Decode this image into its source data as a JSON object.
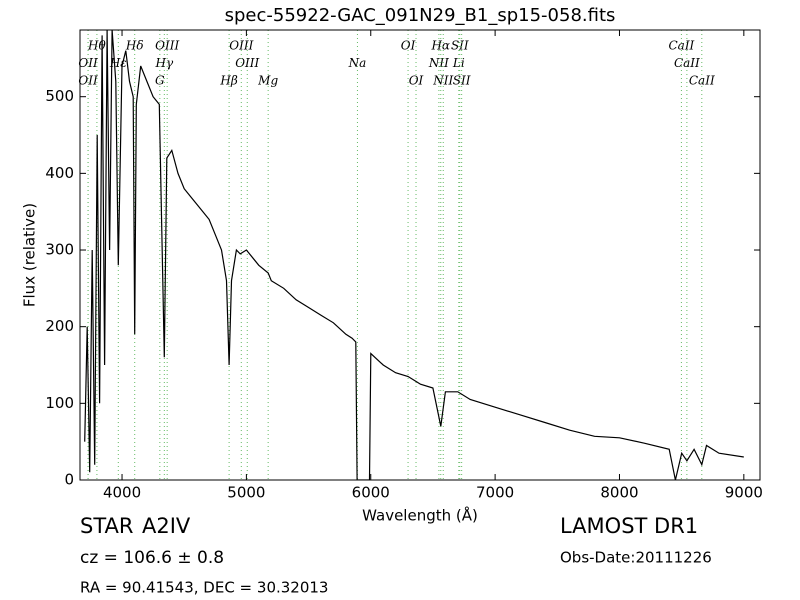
{
  "chart_data": {
    "type": "line",
    "title": "spec-55922-GAC_091N29_B1_sp15-058.fits",
    "x_label": "Wavelength (Å)",
    "y_label": "Flux (relative)",
    "color": "#000000",
    "annotation_color": "#66bb66",
    "xlim": [
      3662,
      9130
    ],
    "ylim": [
      0,
      587
    ],
    "xticks": [
      4000,
      5000,
      6000,
      7000,
      8000,
      9000
    ],
    "yticks": [
      0,
      100,
      200,
      300,
      400,
      500
    ],
    "x": [
      3700,
      3720,
      3740,
      3760,
      3780,
      3800,
      3820,
      3840,
      3860,
      3880,
      3900,
      3920,
      3950,
      3970,
      4000,
      4030,
      4060,
      4090,
      4102,
      4115,
      4150,
      4200,
      4250,
      4300,
      4340,
      4360,
      4400,
      4450,
      4500,
      4550,
      4600,
      4650,
      4700,
      4750,
      4800,
      4840,
      4861,
      4880,
      4920,
      4950,
      5000,
      5100,
      5175,
      5200,
      5300,
      5400,
      5500,
      5600,
      5700,
      5800,
      5850,
      5880,
      5890,
      5990,
      6000,
      6100,
      6200,
      6300,
      6400,
      6500,
      6563,
      6600,
      6700,
      6800,
      7000,
      7200,
      7400,
      7600,
      7800,
      8000,
      8200,
      8400,
      8450,
      8500,
      8542,
      8600,
      8662,
      8700,
      8800,
      9000
    ],
    "values": [
      50,
      200,
      10,
      300,
      20,
      450,
      100,
      580,
      150,
      587,
      300,
      587,
      520,
      280,
      540,
      560,
      520,
      500,
      190,
      490,
      540,
      520,
      500,
      490,
      160,
      420,
      430,
      400,
      380,
      370,
      360,
      350,
      340,
      320,
      300,
      260,
      150,
      260,
      300,
      295,
      300,
      280,
      270,
      260,
      250,
      235,
      225,
      215,
      205,
      190,
      185,
      180,
      0,
      0,
      165,
      150,
      140,
      135,
      125,
      120,
      70,
      115,
      115,
      105,
      95,
      85,
      75,
      65,
      57,
      55,
      48,
      40,
      0,
      35,
      25,
      40,
      20,
      45,
      35,
      30
    ],
    "annotations": [
      {
        "text": "Hθ",
        "x": 3798
      },
      {
        "text": "OII",
        "x": 3727
      },
      {
        "text": "OII",
        "x": 3727
      },
      {
        "text": "Hδ",
        "x": 4102
      },
      {
        "text": "Hγ",
        "x": 4340
      },
      {
        "text": "G",
        "x": 4304
      },
      {
        "text": "OIII",
        "x": 4363
      },
      {
        "text": "OIII",
        "x": 5007
      },
      {
        "text": "Hβ",
        "x": 4861
      },
      {
        "text": "OIII",
        "x": 4959
      },
      {
        "text": "Na",
        "x": 5893
      },
      {
        "text": "Mg",
        "x": 5175
      },
      {
        "text": "OI",
        "x": 6300
      },
      {
        "text": "NII",
        "x": 6548
      },
      {
        "text": "OI",
        "x": 6364
      },
      {
        "text": "Hα",
        "x": 6563
      },
      {
        "text": "Li",
        "x": 6708
      },
      {
        "text": "NII",
        "x": 6583
      },
      {
        "text": "SII",
        "x": 6716
      },
      {
        "text": "CaII",
        "x": 8542
      },
      {
        "text": "SII",
        "x": 6731
      },
      {
        "text": "CaII",
        "x": 8498
      },
      {
        "text": "Hε",
        "x": 3970
      },
      {
        "text": "CaII",
        "x": 8662
      }
    ]
  },
  "footer": {
    "class": "STAR",
    "subclass": "A2IV",
    "survey": "LAMOST DR1",
    "cz": "cz = 106.6 ± 0.8",
    "obs_date": "Obs-Date:20111226",
    "coords": "RA = 90.41543, DEC = 30.32013"
  }
}
